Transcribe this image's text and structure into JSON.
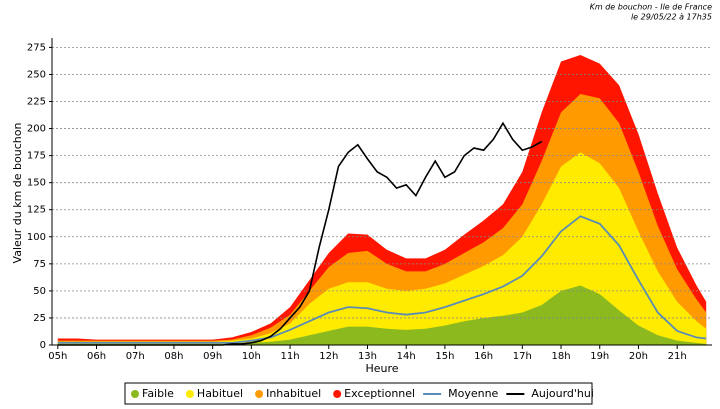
{
  "chart_data": {
    "type": "area",
    "title": "Km de bouchon - Ile de France",
    "subtitle": "le 29/05/22 à 17h35",
    "x_label": "Heure",
    "y_label": "Valeur du  km de bouchon",
    "xlim": [
      4.85,
      21.9
    ],
    "ylim": [
      0,
      280
    ],
    "grid": true,
    "legend": "bottom",
    "xticks": [
      {
        "value": 5,
        "label": "05h"
      },
      {
        "value": 6,
        "label": "06h"
      },
      {
        "value": 7,
        "label": "07h"
      },
      {
        "value": 8,
        "label": "08h"
      },
      {
        "value": 9,
        "label": "09h"
      },
      {
        "value": 10,
        "label": "10h"
      },
      {
        "value": 11,
        "label": "11h"
      },
      {
        "value": 12,
        "label": "12h"
      },
      {
        "value": 13,
        "label": "13h"
      },
      {
        "value": 14,
        "label": "14h"
      },
      {
        "value": 15,
        "label": "15h"
      },
      {
        "value": 16,
        "label": "16h"
      },
      {
        "value": 17,
        "label": "17h"
      },
      {
        "value": 18,
        "label": "18h"
      },
      {
        "value": 19,
        "label": "19h"
      },
      {
        "value": 20,
        "label": "20h"
      },
      {
        "value": 21,
        "label": "21h"
      }
    ],
    "yticks": [
      0,
      25,
      50,
      75,
      100,
      125,
      150,
      175,
      200,
      225,
      250,
      275
    ],
    "x": [
      5,
      5.5,
      6,
      6.5,
      7,
      7.5,
      8,
      8.5,
      9,
      9.5,
      10,
      10.5,
      11,
      11.5,
      12,
      12.5,
      13,
      13.5,
      14,
      14.5,
      15,
      15.5,
      16,
      16.5,
      17,
      17.5,
      18,
      18.5,
      19,
      19.5,
      20,
      20.5,
      21,
      21.5,
      21.75
    ],
    "series": [
      {
        "name": "Faible",
        "kind": "area",
        "color": "#8cba1e",
        "values": [
          1,
          1,
          1,
          1,
          1,
          1,
          1,
          1,
          1,
          1,
          2,
          3,
          5,
          9,
          13,
          17,
          17,
          15,
          14,
          15,
          18,
          22,
          25,
          27,
          30,
          37,
          50,
          55,
          47,
          32,
          18,
          9,
          4,
          2,
          1
        ]
      },
      {
        "name": "Habituel",
        "kind": "area",
        "color": "#ffeb00",
        "values": [
          3,
          3,
          3,
          3,
          3,
          3,
          3,
          3,
          3,
          4,
          6,
          11,
          20,
          38,
          52,
          58,
          58,
          52,
          50,
          52,
          57,
          65,
          73,
          83,
          100,
          130,
          165,
          178,
          168,
          145,
          105,
          68,
          40,
          22,
          15
        ]
      },
      {
        "name": "Inhabituel",
        "kind": "area",
        "color": "#ff9a00",
        "values": [
          4,
          4,
          4,
          4,
          4,
          4,
          4,
          4,
          4,
          5,
          9,
          16,
          28,
          50,
          72,
          85,
          87,
          75,
          68,
          68,
          75,
          85,
          95,
          108,
          130,
          170,
          215,
          232,
          228,
          205,
          160,
          110,
          70,
          42,
          30
        ]
      },
      {
        "name": "Exceptionnel",
        "kind": "area",
        "color": "#ff1500",
        "values": [
          6,
          6,
          5,
          5,
          5,
          5,
          5,
          5,
          5,
          7,
          12,
          20,
          35,
          60,
          85,
          103,
          102,
          88,
          80,
          80,
          88,
          102,
          115,
          130,
          160,
          215,
          262,
          268,
          260,
          240,
          195,
          140,
          90,
          55,
          40
        ]
      },
      {
        "name": "Moyenne",
        "kind": "line",
        "color": "#5a8cb6",
        "values": [
          2,
          2,
          2,
          2,
          2,
          2,
          2,
          2,
          2,
          2,
          4,
          7,
          14,
          22,
          30,
          35,
          34,
          30,
          28,
          30,
          35,
          41,
          47,
          54,
          64,
          82,
          105,
          119,
          112,
          92,
          60,
          30,
          13,
          7,
          6
        ]
      },
      {
        "name": "Aujourd'hui",
        "kind": "line",
        "color": "#000000",
        "x": [
          5,
          5.25,
          5.5,
          5.75,
          6,
          6.25,
          6.5,
          6.75,
          7,
          7.25,
          7.5,
          7.75,
          8,
          8.25,
          8.5,
          8.75,
          9,
          9.25,
          9.5,
          9.75,
          10,
          10.25,
          10.5,
          10.75,
          11,
          11.25,
          11.5,
          11.75,
          12,
          12.25,
          12.5,
          12.75,
          13,
          13.25,
          13.5,
          13.75,
          14,
          14.25,
          14.5,
          14.75,
          15,
          15.25,
          15.5,
          15.75,
          16,
          16.25,
          16.5,
          16.75,
          17,
          17.25,
          17.5
        ],
        "values": [
          0,
          0,
          0,
          0,
          0,
          0,
          0,
          0,
          0,
          0,
          0,
          0,
          0,
          0,
          0,
          0,
          0,
          0,
          1,
          1,
          2,
          4,
          8,
          15,
          25,
          35,
          50,
          90,
          125,
          165,
          178,
          185,
          172,
          160,
          155,
          145,
          148,
          138,
          155,
          170,
          155,
          160,
          175,
          182,
          180,
          190,
          205,
          190,
          180,
          183,
          188
        ]
      }
    ]
  }
}
